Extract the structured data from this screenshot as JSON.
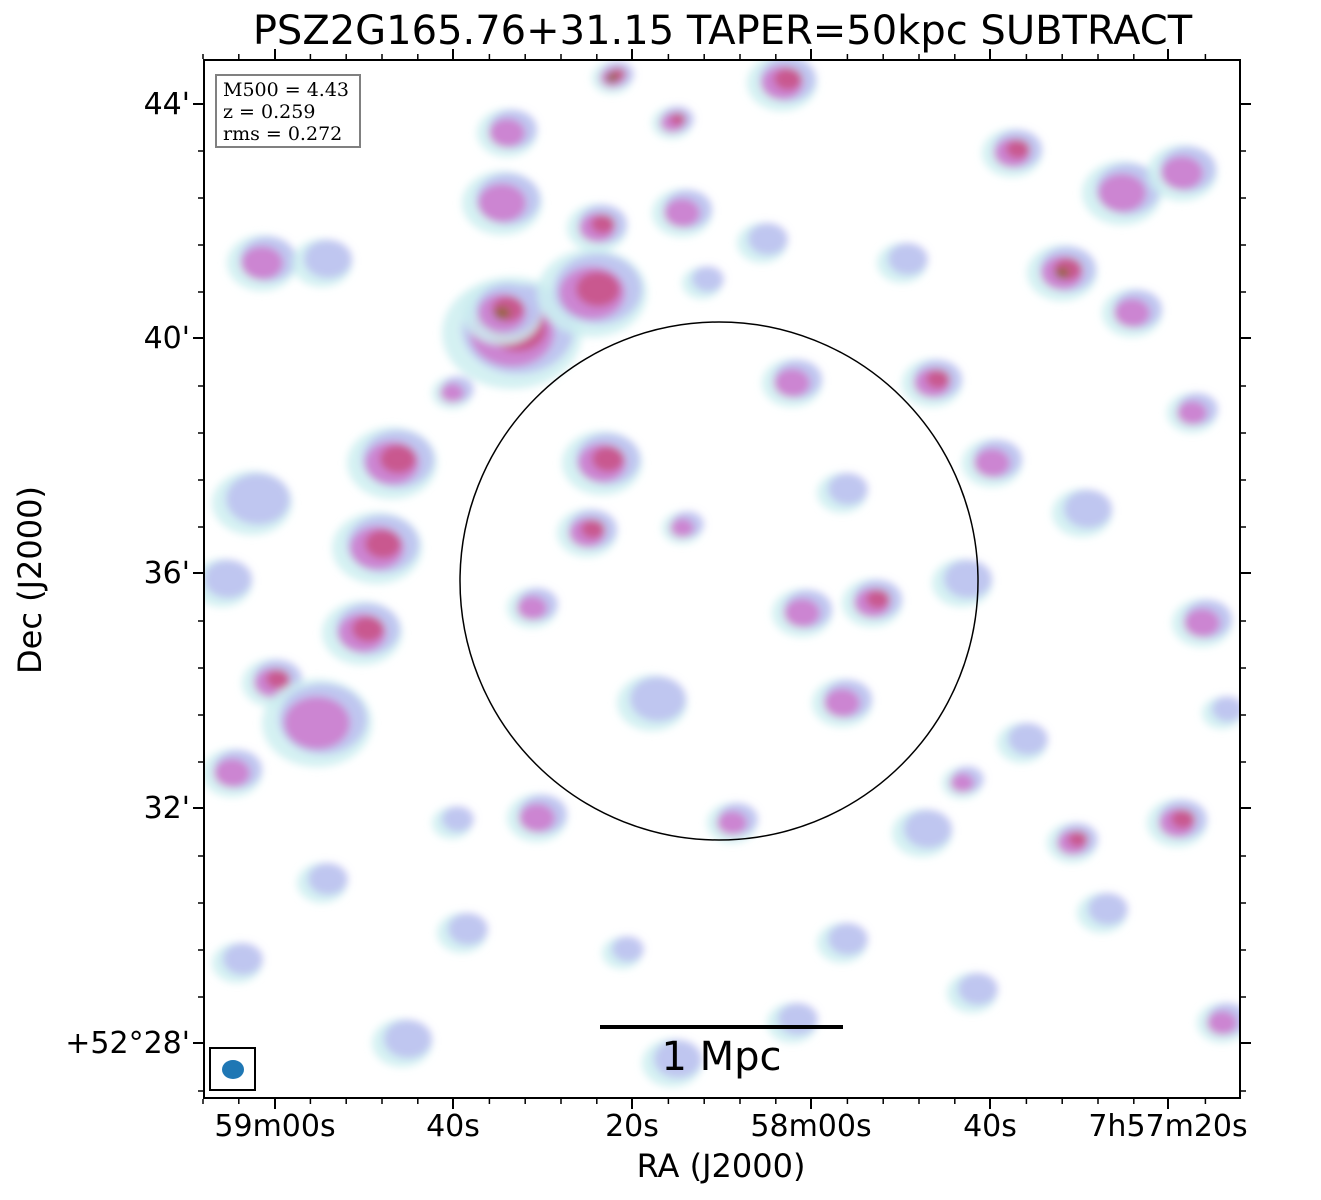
{
  "title": "PSZ2G165.76+31.15 TAPER=50kpc SUBTRACT",
  "info": {
    "m500": "M500 = 4.43",
    "z": "z = 0.259",
    "rms": "rms = 0.272"
  },
  "scalebar_label": "1 Mpc",
  "axes": {
    "xlabel": "RA (J2000)",
    "ylabel": "Dec (J2000)",
    "xticks": [
      "59m00s",
      "40s",
      "20s",
      "58m00s",
      "40s",
      "7h57m20s"
    ],
    "yticks": [
      "44'",
      "40'",
      "36'",
      "32'",
      "+52°28'"
    ]
  },
  "colors": {
    "low": "#cdeef0",
    "mid": "#b8b8f0",
    "high": "#d070c8",
    "peak": "#c84a7a",
    "core": "#8a6a2a",
    "beam": "#1f77b4",
    "circle": "#000000"
  }
}
